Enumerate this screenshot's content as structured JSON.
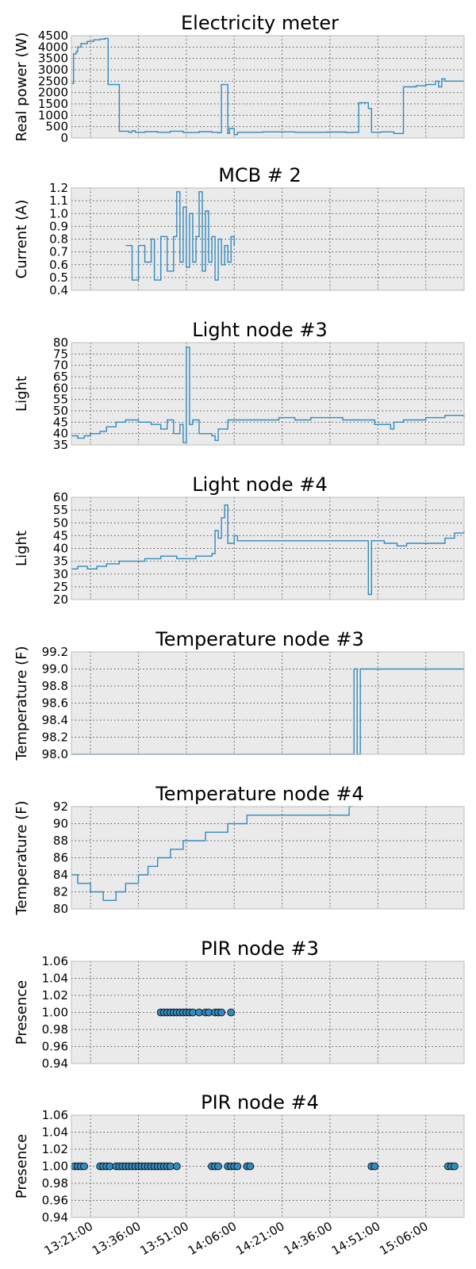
{
  "style": {
    "plot_background": "#eaeaea",
    "line_color": "#348abd",
    "marker_edge": "#000000",
    "frame_color": "#bcbcbc",
    "grid_color": "#555555"
  },
  "chart_data": {
    "type": "line",
    "shared_x": {
      "range": [
        "13:15:00",
        "15:18:00"
      ],
      "tick_labels": [
        "13:21:00",
        "13:36:00",
        "13:51:00",
        "14:06:00",
        "14:21:00",
        "14:36:00",
        "14:51:00",
        "15:06:00"
      ],
      "grid": true
    },
    "panels": [
      {
        "type": "line",
        "title": "Electricity meter",
        "ylabel": "Real power (W)",
        "ylim": [
          0,
          4500
        ],
        "yticks": [
          "0",
          "500",
          "1000",
          "1500",
          "2000",
          "2500",
          "3000",
          "3500",
          "4000",
          "4500"
        ],
        "grid": true,
        "step": true,
        "points": [
          [
            "13:15:00",
            2400
          ],
          [
            "13:15:40",
            3700
          ],
          [
            "13:16:30",
            3800
          ],
          [
            "13:17:00",
            4000
          ],
          [
            "13:18:00",
            4150
          ],
          [
            "13:20:00",
            4250
          ],
          [
            "13:22:00",
            4320
          ],
          [
            "13:24:00",
            4350
          ],
          [
            "13:25:30",
            4380
          ],
          [
            "13:26:30",
            2350
          ],
          [
            "13:29:30",
            2350
          ],
          [
            "13:30:00",
            300
          ],
          [
            "13:33:00",
            250
          ],
          [
            "13:34:00",
            320
          ],
          [
            "13:35:00",
            250
          ],
          [
            "13:38:00",
            280
          ],
          [
            "13:42:00",
            250
          ],
          [
            "13:46:00",
            300
          ],
          [
            "13:50:00",
            240
          ],
          [
            "13:55:00",
            280
          ],
          [
            "13:59:00",
            250
          ],
          [
            "14:01:00",
            230
          ],
          [
            "14:02:00",
            2350
          ],
          [
            "14:04:00",
            200
          ],
          [
            "14:04:30",
            420
          ],
          [
            "14:06:00",
            150
          ],
          [
            "14:07:00",
            250
          ],
          [
            "14:15:00",
            270
          ],
          [
            "14:25:00",
            250
          ],
          [
            "14:35:00",
            260
          ],
          [
            "14:41:00",
            240
          ],
          [
            "14:43:00",
            250
          ],
          [
            "14:45:00",
            1550
          ],
          [
            "14:48:00",
            1300
          ],
          [
            "14:49:00",
            250
          ],
          [
            "14:52:00",
            270
          ],
          [
            "14:56:00",
            200
          ],
          [
            "14:59:00",
            2250
          ],
          [
            "15:03:00",
            2300
          ],
          [
            "15:06:00",
            2350
          ],
          [
            "15:09:00",
            2500
          ],
          [
            "15:10:00",
            2250
          ],
          [
            "15:11:00",
            2600
          ],
          [
            "15:12:00",
            2500
          ],
          [
            "15:18:00",
            2500
          ]
        ]
      },
      {
        "type": "line",
        "title": "MCB # 2",
        "ylabel": "Current (A)",
        "ylim": [
          0.4,
          1.2
        ],
        "yticks": [
          "0.4",
          "0.5",
          "0.6",
          "0.7",
          "0.8",
          "0.9",
          "1.0",
          "1.1",
          "1.2"
        ],
        "grid": true,
        "step": true,
        "points": [
          [
            "13:32:00",
            0.75
          ],
          [
            "13:34:00",
            0.48
          ],
          [
            "13:36:00",
            0.75
          ],
          [
            "13:38:00",
            0.62
          ],
          [
            "13:40:00",
            0.8
          ],
          [
            "13:41:00",
            0.48
          ],
          [
            "13:43:00",
            0.82
          ],
          [
            "13:45:00",
            0.55
          ],
          [
            "13:47:00",
            0.82
          ],
          [
            "13:48:00",
            1.17
          ],
          [
            "13:49:00",
            0.62
          ],
          [
            "13:50:00",
            1.05
          ],
          [
            "13:51:00",
            0.58
          ],
          [
            "13:52:00",
            1.0
          ],
          [
            "13:53:00",
            0.62
          ],
          [
            "13:54:00",
            0.82
          ],
          [
            "13:55:00",
            1.17
          ],
          [
            "13:56:00",
            0.55
          ],
          [
            "13:57:00",
            1.02
          ],
          [
            "13:58:00",
            0.62
          ],
          [
            "13:59:00",
            0.82
          ],
          [
            "14:00:00",
            0.48
          ],
          [
            "14:01:00",
            0.8
          ],
          [
            "14:02:00",
            0.6
          ],
          [
            "14:03:00",
            0.75
          ],
          [
            "14:04:00",
            0.62
          ],
          [
            "14:05:00",
            0.82
          ],
          [
            "14:06:00",
            0.75
          ]
        ]
      },
      {
        "type": "line",
        "title": "Light node #3",
        "ylabel": "Light",
        "ylim": [
          35,
          80
        ],
        "yticks": [
          "35",
          "40",
          "45",
          "50",
          "55",
          "60",
          "65",
          "70",
          "75",
          "80"
        ],
        "grid": true,
        "step": true,
        "points": [
          [
            "13:15:00",
            39
          ],
          [
            "13:17:00",
            38
          ],
          [
            "13:19:00",
            39
          ],
          [
            "13:21:00",
            40
          ],
          [
            "13:24:00",
            41
          ],
          [
            "13:26:00",
            43
          ],
          [
            "13:29:00",
            45
          ],
          [
            "13:32:00",
            46
          ],
          [
            "13:36:00",
            45
          ],
          [
            "13:40:00",
            44
          ],
          [
            "13:43:00",
            42
          ],
          [
            "13:45:00",
            46
          ],
          [
            "13:47:00",
            40
          ],
          [
            "13:49:00",
            44
          ],
          [
            "13:50:00",
            36
          ],
          [
            "13:51:00",
            78
          ],
          [
            "13:52:00",
            44
          ],
          [
            "13:53:00",
            46
          ],
          [
            "13:55:00",
            40
          ],
          [
            "13:59:00",
            39
          ],
          [
            "14:00:00",
            37
          ],
          [
            "14:01:00",
            42
          ],
          [
            "14:04:00",
            46
          ],
          [
            "14:10:00",
            46
          ],
          [
            "14:20:00",
            47
          ],
          [
            "14:25:00",
            46
          ],
          [
            "14:30:00",
            47
          ],
          [
            "14:40:00",
            46
          ],
          [
            "14:50:00",
            44
          ],
          [
            "14:55:00",
            42
          ],
          [
            "14:56:00",
            45
          ],
          [
            "14:59:00",
            46
          ],
          [
            "15:06:00",
            47
          ],
          [
            "15:12:00",
            48
          ],
          [
            "15:18:00",
            47
          ]
        ]
      },
      {
        "type": "line",
        "title": "Light node #4",
        "ylabel": "Light",
        "ylim": [
          20,
          60
        ],
        "yticks": [
          "20",
          "25",
          "30",
          "35",
          "40",
          "45",
          "50",
          "55",
          "60"
        ],
        "grid": true,
        "step": true,
        "points": [
          [
            "13:15:00",
            32
          ],
          [
            "13:17:00",
            33
          ],
          [
            "13:20:00",
            32
          ],
          [
            "13:23:00",
            33
          ],
          [
            "13:26:00",
            34
          ],
          [
            "13:30:00",
            35
          ],
          [
            "13:35:00",
            35
          ],
          [
            "13:38:00",
            36
          ],
          [
            "13:43:00",
            37
          ],
          [
            "13:48:00",
            36
          ],
          [
            "13:54:00",
            37
          ],
          [
            "13:59:00",
            38
          ],
          [
            "14:00:00",
            47
          ],
          [
            "14:01:00",
            44
          ],
          [
            "14:02:00",
            52
          ],
          [
            "14:03:00",
            57
          ],
          [
            "14:04:00",
            42
          ],
          [
            "14:06:00",
            45
          ],
          [
            "14:07:00",
            43
          ],
          [
            "14:10:00",
            43
          ],
          [
            "14:20:00",
            43
          ],
          [
            "14:30:00",
            43
          ],
          [
            "14:40:00",
            43
          ],
          [
            "14:47:00",
            43
          ],
          [
            "14:48:00",
            22
          ],
          [
            "14:49:00",
            43
          ],
          [
            "14:53:00",
            42
          ],
          [
            "14:57:00",
            41
          ],
          [
            "15:00:00",
            42
          ],
          [
            "15:06:00",
            42
          ],
          [
            "15:12:00",
            44
          ],
          [
            "15:15:00",
            46
          ],
          [
            "15:18:00",
            47
          ]
        ]
      },
      {
        "type": "line",
        "title": "Temperature node #3",
        "ylabel": "Temperature (F)",
        "ylim": [
          98.0,
          99.2
        ],
        "yticks": [
          "98.0",
          "98.2",
          "98.4",
          "98.6",
          "98.8",
          "99.0",
          "99.2"
        ],
        "grid": true,
        "step": true,
        "points": [
          [
            "13:15:00",
            98.0
          ],
          [
            "14:43:00",
            98.0
          ],
          [
            "14:43:30",
            99.0
          ],
          [
            "14:44:30",
            98.0
          ],
          [
            "14:45:00",
            98.0
          ],
          [
            "14:45:30",
            99.0
          ],
          [
            "15:18:00",
            99.0
          ]
        ]
      },
      {
        "type": "line",
        "title": "Temperature node #4",
        "ylabel": "Temperature (F)",
        "ylim": [
          80,
          92
        ],
        "yticks": [
          "80",
          "82",
          "84",
          "86",
          "88",
          "90",
          "92"
        ],
        "grid": true,
        "step": true,
        "points": [
          [
            "13:15:00",
            84
          ],
          [
            "13:17:00",
            83
          ],
          [
            "13:21:00",
            82
          ],
          [
            "13:25:00",
            81
          ],
          [
            "13:29:00",
            82
          ],
          [
            "13:32:00",
            83
          ],
          [
            "13:36:00",
            84
          ],
          [
            "13:39:00",
            85
          ],
          [
            "13:42:00",
            86
          ],
          [
            "13:46:00",
            87
          ],
          [
            "13:50:00",
            88
          ],
          [
            "13:57:00",
            89
          ],
          [
            "14:04:00",
            90
          ],
          [
            "14:10:00",
            91
          ],
          [
            "14:23:00",
            91
          ],
          [
            "14:38:00",
            91
          ],
          [
            "14:42:00",
            92
          ],
          [
            "14:43:00",
            92
          ]
        ]
      },
      {
        "type": "scatter",
        "title": "PIR node #3",
        "ylabel": "Presence",
        "ylim": [
          0.94,
          1.06
        ],
        "yticks": [
          "0.94",
          "0.96",
          "0.98",
          "1.00",
          "1.02",
          "1.04",
          "1.06"
        ],
        "grid": true,
        "y_value": 1.0,
        "x": [
          "13:43:00",
          "13:44:00",
          "13:45:00",
          "13:46:00",
          "13:47:00",
          "13:48:00",
          "13:49:00",
          "13:50:00",
          "13:51:00",
          "13:52:00",
          "13:53:00",
          "13:55:00",
          "13:57:00",
          "13:58:00",
          "14:00:00",
          "14:01:00",
          "14:02:00",
          "14:05:00"
        ]
      },
      {
        "type": "scatter",
        "title": "PIR node #4",
        "ylabel": "Presence",
        "ylim": [
          0.94,
          1.06
        ],
        "yticks": [
          "0.94",
          "0.96",
          "0.98",
          "1.00",
          "1.02",
          "1.04",
          "1.06"
        ],
        "grid": true,
        "y_value": 1.0,
        "x": [
          "13:16:00",
          "13:17:00",
          "13:18:00",
          "13:19:00",
          "13:24:00",
          "13:25:00",
          "13:26:00",
          "13:27:00",
          "13:29:00",
          "13:30:00",
          "13:31:00",
          "13:32:00",
          "13:33:00",
          "13:34:00",
          "13:35:00",
          "13:36:00",
          "13:37:00",
          "13:38:00",
          "13:39:00",
          "13:40:00",
          "13:41:00",
          "13:42:00",
          "13:43:00",
          "13:44:00",
          "13:45:00",
          "13:46:00",
          "13:48:00",
          "13:59:00",
          "14:00:00",
          "14:01:00",
          "14:04:00",
          "14:05:00",
          "14:06:00",
          "14:07:00",
          "14:10:00",
          "14:11:00",
          "14:49:00",
          "14:50:00",
          "15:13:00",
          "15:14:00",
          "15:15:00"
        ]
      }
    ]
  }
}
